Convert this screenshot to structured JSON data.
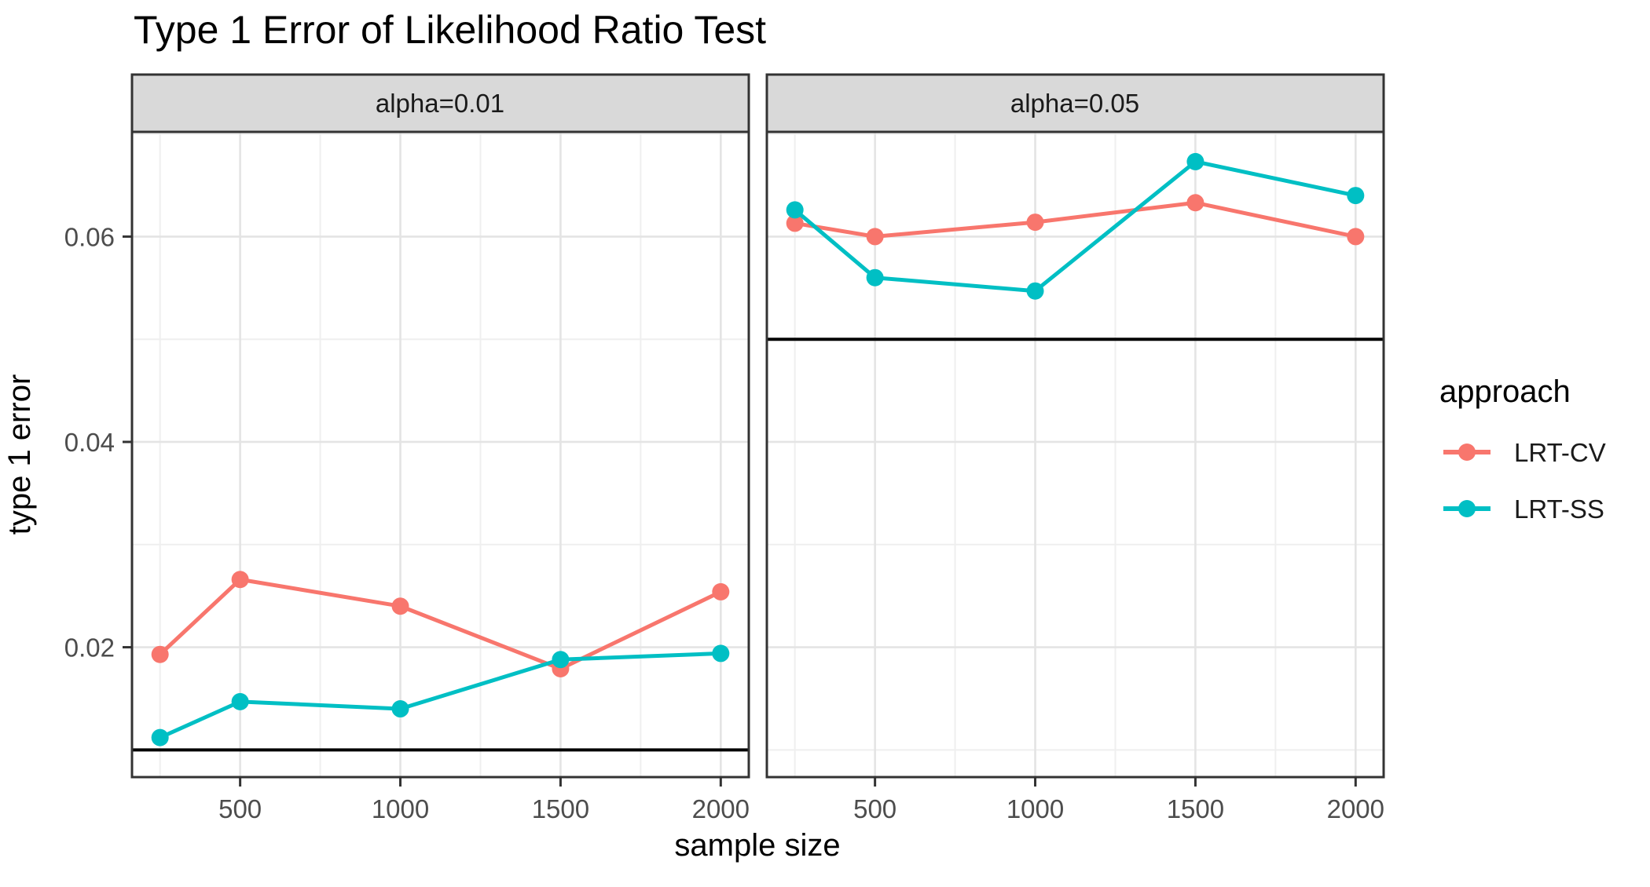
{
  "chart_data": {
    "type": "line",
    "title": "Type 1 Error of Likelihood Ratio Test",
    "xlabel": "sample size",
    "ylabel": "type 1 error",
    "x": [
      250,
      500,
      1000,
      1500,
      2000
    ],
    "x_tick_labels": [
      "500",
      "1000",
      "1500",
      "2000"
    ],
    "x_ticks": [
      500,
      1000,
      1500,
      2000
    ],
    "x_minor_gridlines": [
      250,
      750,
      1250,
      1750
    ],
    "y_ticks": [
      0.02,
      0.04,
      0.06
    ],
    "y_tick_labels": [
      "0.02",
      "0.04",
      "0.06"
    ],
    "y_minor_gridlines": [
      0.01,
      0.03,
      0.05,
      0.07
    ],
    "xlim": [
      162.5,
      2087.5
    ],
    "ylim": [
      0.00735,
      0.0702
    ],
    "grid": true,
    "legend_position": "right",
    "facets": [
      {
        "label": "alpha=0.01",
        "reference_line": 0.01,
        "series": [
          {
            "name": "LRT-CV",
            "values": [
              0.0193,
              0.0266,
              0.024,
              0.0179,
              0.0254
            ]
          },
          {
            "name": "LRT-SS",
            "values": [
              0.0112,
              0.0147,
              0.014,
              0.0188,
              0.0194
            ]
          }
        ]
      },
      {
        "label": "alpha=0.05",
        "reference_line": 0.05,
        "series": [
          {
            "name": "LRT-CV",
            "values": [
              0.0613,
              0.06,
              0.0614,
              0.0633,
              0.06
            ]
          },
          {
            "name": "LRT-SS",
            "values": [
              0.0626,
              0.056,
              0.0547,
              0.0673,
              0.064
            ]
          }
        ]
      }
    ],
    "legend": {
      "title": "approach",
      "entries": [
        {
          "label": "LRT-CV",
          "color": "#F8766D"
        },
        {
          "label": "LRT-SS",
          "color": "#00BFC4"
        }
      ]
    },
    "colors": {
      "lrt_cv": "#F8766D",
      "lrt_ss": "#00BFC4",
      "reference_line": "#000000",
      "grid_major": "#E4E4E4",
      "grid_minor": "#EFEFEF",
      "panel_border": "#333333",
      "strip_fill": "#D9D9D9",
      "axis_text": "#4d4d4d"
    }
  }
}
